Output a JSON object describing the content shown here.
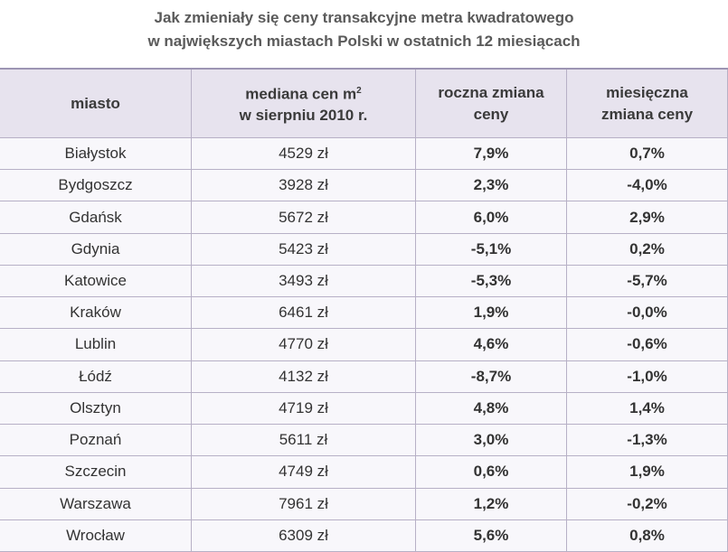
{
  "title": [
    "Jak zmieniały się ceny transakcyjne metra kwadratowego",
    "w największych miastach Polski w ostatnich 12 miesiącach"
  ],
  "table": {
    "columns": [
      {
        "lines": [
          "miasto"
        ]
      },
      {
        "lines": [
          "mediana cen m",
          "w sierpniu 2010 r."
        ],
        "sup": "2"
      },
      {
        "lines": [
          "roczna zmiana",
          "ceny"
        ]
      },
      {
        "lines": [
          "miesięczna",
          "zmiana ceny"
        ]
      }
    ],
    "rows": [
      [
        "Białystok",
        "4529 zł",
        "7,9%",
        "0,7%"
      ],
      [
        "Bydgoszcz",
        "3928 zł",
        "2,3%",
        "-4,0%"
      ],
      [
        "Gdańsk",
        "5672 zł",
        "6,0%",
        "2,9%"
      ],
      [
        "Gdynia",
        "5423 zł",
        "-5,1%",
        "0,2%"
      ],
      [
        "Katowice",
        "3493 zł",
        "-5,3%",
        "-5,7%"
      ],
      [
        "Kraków",
        "6461 zł",
        "1,9%",
        "-0,0%"
      ],
      [
        "Lublin",
        "4770 zł",
        "4,6%",
        "-0,6%"
      ],
      [
        "Łódź",
        "4132 zł",
        "-8,7%",
        "-1,0%"
      ],
      [
        "Olsztyn",
        "4719 zł",
        "4,8%",
        "1,4%"
      ],
      [
        "Poznań",
        "5611 zł",
        "3,0%",
        "-1,3%"
      ],
      [
        "Szczecin",
        "4749 zł",
        "0,6%",
        "1,9%"
      ],
      [
        "Warszawa",
        "7961 zł",
        "1,2%",
        "-0,2%"
      ],
      [
        "Wrocław",
        "6309 zł",
        "5,6%",
        "0,8%"
      ]
    ]
  }
}
